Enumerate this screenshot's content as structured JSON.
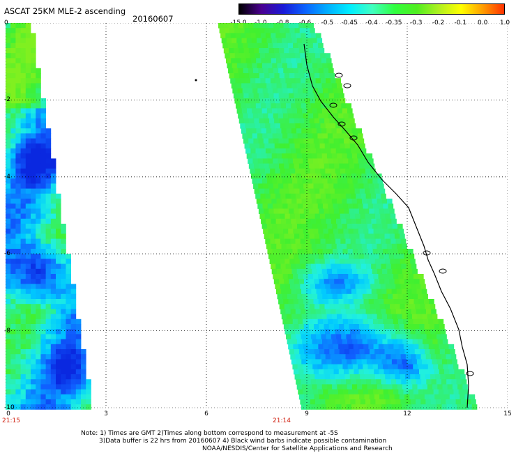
{
  "header": {
    "title": "ASCAT 25KM MLE-2 ascending",
    "date": "20160607"
  },
  "colorbar": {
    "labels": [
      "-15.0",
      "-1.0",
      "-0.8",
      "-0.6",
      "-0.5",
      "-0.45",
      "-0.4",
      "-0.35",
      "-0.3",
      "-0.2",
      "-0.1",
      "0.0",
      "1.0"
    ],
    "colors": [
      "#000000",
      "#4a0090",
      "#1a1ad8",
      "#0a64ff",
      "#00b0ff",
      "#00eeff",
      "#40ffc0",
      "#30ff40",
      "#50ee20",
      "#b0f020",
      "#ffff00",
      "#ff9a00",
      "#ff2a00"
    ]
  },
  "axes": {
    "x_ticks": [
      "0",
      "3",
      "6",
      "9",
      "12",
      "15"
    ],
    "y_ticks": [
      "0",
      "-2",
      "-4",
      "-6",
      "-8",
      "-10"
    ],
    "x_range": [
      0,
      15
    ],
    "y_range": [
      -10,
      0
    ]
  },
  "swath_times": {
    "left": "21:15",
    "right": "21:14"
  },
  "notes": {
    "line1": "Note: 1) Times are GMT 2)Times along bottom correspond to measurement at -5S",
    "line2": "3)Data buffer is 22 hrs from 20160607 4) Black wind barbs indicate possible contamination",
    "line3": "NOAA/NESDIS/Center for Satellite Applications and Research"
  }
}
